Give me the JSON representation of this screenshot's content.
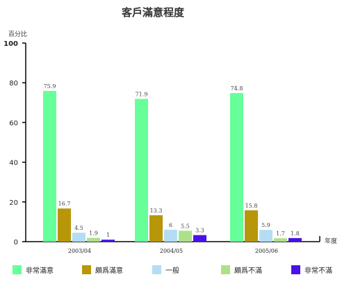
{
  "chart_data": {
    "type": "bar",
    "title": "客戶滿意程度",
    "ylabel": "百分比",
    "xlabel": "年度",
    "ylim": [
      0,
      100
    ],
    "yticks": [
      0,
      20,
      40,
      60,
      80,
      100
    ],
    "categories": [
      "2003/04",
      "2004/05",
      "2005/06"
    ],
    "legend_position": "bottom",
    "grid": false,
    "series": [
      {
        "name": "非常滿意",
        "color": "#66ff99",
        "values": [
          75.9,
          71.9,
          74.8
        ]
      },
      {
        "name": "頗爲滿意",
        "color": "#b8960a",
        "values": [
          16.7,
          13.3,
          15.8
        ]
      },
      {
        "name": "一般",
        "color": "#b3ddf5",
        "values": [
          4.5,
          6,
          5.9
        ]
      },
      {
        "name": "頗爲不滿",
        "color": "#aee08a",
        "values": [
          1.9,
          5.5,
          1.7
        ]
      },
      {
        "name": "非常不滿",
        "color": "#4b10e8",
        "values": [
          1,
          3.3,
          1.8
        ]
      }
    ]
  }
}
